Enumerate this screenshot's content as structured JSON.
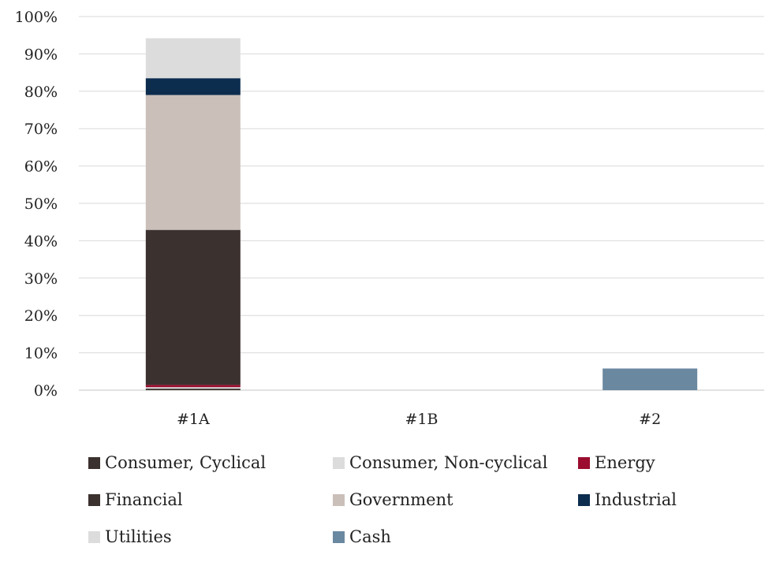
{
  "chart_data": {
    "type": "bar",
    "stacked": true,
    "title": "",
    "xlabel": "",
    "ylabel": "",
    "ylim": [
      0,
      100
    ],
    "yticks": [
      "0%",
      "10%",
      "20%",
      "30%",
      "40%",
      "50%",
      "60%",
      "70%",
      "80%",
      "90%",
      "100%"
    ],
    "categories": [
      "#1A",
      "#1B",
      "#2"
    ],
    "grid": "horizontal",
    "legend_position": "bottom",
    "series": [
      {
        "name": "Consumer, Cyclical",
        "color": "#3b312e",
        "values": [
          0.4,
          0,
          0
        ]
      },
      {
        "name": "Consumer, Non-cyclical",
        "color": "#dcdcdc",
        "values": [
          0.4,
          0,
          0
        ]
      },
      {
        "name": "Energy",
        "color": "#9b0c2e",
        "values": [
          0.6,
          0,
          0
        ]
      },
      {
        "name": "Financial",
        "color": "#3b312e",
        "values": [
          41.5,
          0,
          0
        ]
      },
      {
        "name": "Government",
        "color": "#cbbfba",
        "values": [
          36.1,
          0,
          0
        ]
      },
      {
        "name": "Industrial",
        "color": "#0d2d4f",
        "values": [
          4.5,
          0,
          0
        ]
      },
      {
        "name": "Utilities",
        "color": "#dcdcdc",
        "values": [
          10.7,
          0,
          0
        ]
      },
      {
        "name": "Cash",
        "color": "#6a88a0",
        "values": [
          0,
          0,
          5.8
        ]
      }
    ]
  }
}
